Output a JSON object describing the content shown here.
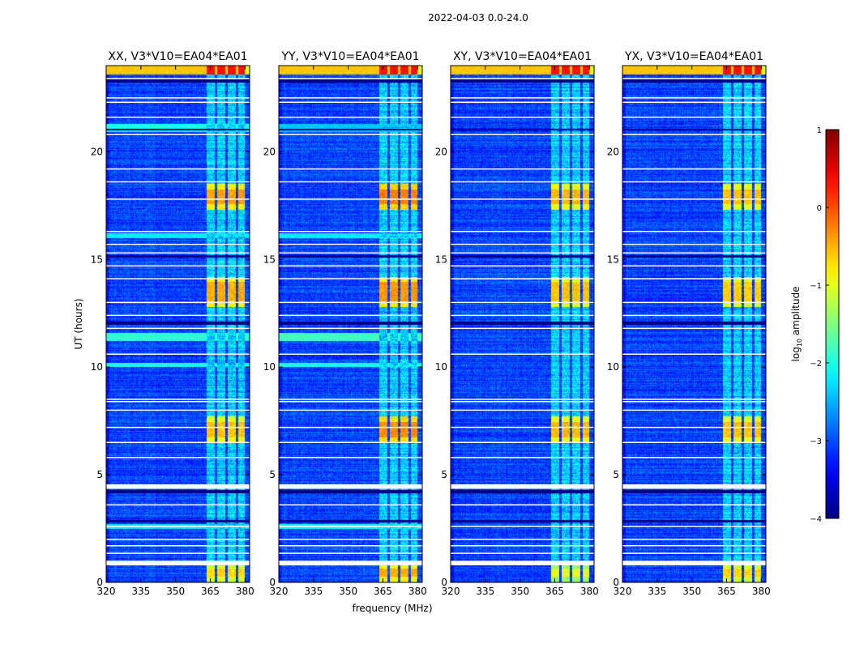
{
  "figure": {
    "suptitle": "2022-04-03 0.0-24.0",
    "xlabel": "frequency (MHz)",
    "ylabel": "UT (hours)"
  },
  "colors": {
    "blank_line": "#ffffff",
    "frame": "#000000"
  },
  "chart_data": {
    "type": "heatmap",
    "colormap": "jet",
    "xlim": [
      320,
      382
    ],
    "ylim": [
      0,
      24
    ],
    "xticks": [
      320,
      335,
      350,
      365,
      380
    ],
    "yticks": [
      0,
      5,
      10,
      15,
      20
    ],
    "panels": [
      {
        "title": "XX, V3*V10=EA04*EA01",
        "polarization": "XX",
        "rfi_bursts": [
          [
            0,
            0.9,
            1.0
          ],
          [
            6.5,
            7.7,
            1.2
          ],
          [
            12.8,
            14.2,
            1.4
          ],
          [
            17.3,
            18.5,
            1.5
          ]
        ],
        "wide_bands": [
          [
            11.2,
            11.6,
            -1.9
          ],
          [
            10.0,
            10.2,
            -2.0
          ],
          [
            2.5,
            2.7,
            -2.2
          ],
          [
            20.9,
            21.3,
            -2.0
          ],
          [
            16.0,
            16.2,
            -2.2
          ]
        ]
      },
      {
        "title": "YY, V3*V10=EA04*EA01",
        "polarization": "YY",
        "rfi_bursts": [
          [
            0,
            0.9,
            1.4
          ],
          [
            6.5,
            7.7,
            1.7
          ],
          [
            12.8,
            14.2,
            1.6
          ],
          [
            17.3,
            18.5,
            1.8
          ]
        ],
        "wide_bands": [
          [
            11.2,
            11.6,
            -1.8
          ],
          [
            10.0,
            10.2,
            -2.0
          ],
          [
            2.5,
            2.7,
            -2.1
          ],
          [
            20.9,
            21.3,
            -2.4
          ],
          [
            16.0,
            16.2,
            -2.2
          ]
        ]
      },
      {
        "title": "XY, V3*V10=EA04*EA01",
        "polarization": "XY",
        "rfi_bursts": [
          [
            0,
            0.9,
            0.5
          ],
          [
            6.5,
            7.7,
            1.3
          ],
          [
            12.8,
            14.2,
            1.2
          ],
          [
            17.3,
            18.5,
            1.3
          ]
        ],
        "wide_bands": []
      },
      {
        "title": "YX, V3*V10=EA04*EA01",
        "polarization": "YX",
        "rfi_bursts": [
          [
            0,
            0.9,
            1.0
          ],
          [
            6.5,
            7.7,
            1.2
          ],
          [
            12.8,
            14.2,
            1.1
          ],
          [
            17.3,
            18.5,
            1.2
          ]
        ],
        "wide_bands": []
      }
    ],
    "rfi_channels_mhz": [
      [
        363.5,
        367.0
      ],
      [
        368.0,
        371.5
      ],
      [
        372.5,
        376.0
      ],
      [
        377.0,
        380.0
      ]
    ],
    "top_band": {
      "range_ut": [
        23.6,
        24.0
      ],
      "log_amplitude": -0.6
    },
    "blank_intervals_ut": [
      0.85,
      0.95,
      1.35,
      1.7,
      2.0,
      2.6,
      3.6,
      4.4,
      4.5,
      5.8,
      6.5,
      7.2,
      8.0,
      8.4,
      8.5,
      10.6,
      11.8,
      12.4,
      13.0,
      14.1,
      14.7,
      15.3,
      15.7,
      16.3,
      17.8,
      18.6,
      19.2,
      20.8,
      21.6,
      22.3,
      22.5,
      23.4
    ],
    "dark_intervals_ut": [
      [
        2.8,
        2.9
      ],
      [
        4.15,
        4.3
      ],
      [
        11.95,
        12.1
      ],
      [
        23.2,
        23.35
      ],
      [
        15.1,
        15.2
      ],
      [
        21.0,
        21.05
      ]
    ],
    "colorbar": {
      "label": "log",
      "label_sub": "10",
      "label_tail": " amplitude",
      "range": [
        -4,
        1
      ],
      "ticks": [
        1,
        0,
        -1,
        -2,
        -3,
        -4
      ],
      "tick_labels": [
        "1",
        "0",
        "−1",
        "−2",
        "−3",
        "−4"
      ]
    }
  }
}
